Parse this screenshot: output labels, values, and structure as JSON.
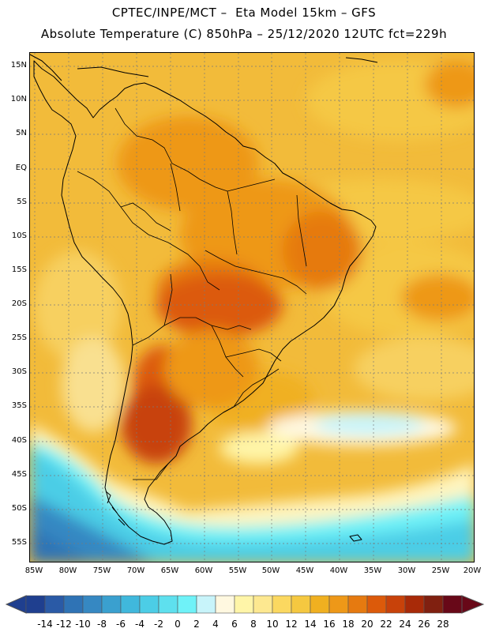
{
  "header": {
    "line1": "CPTEC/INPE/MCT –  Eta Model 15km – GFS",
    "line2": "Absolute Temperature (C) 850hPa – 25/12/2020 12UTC fct=229h"
  },
  "map": {
    "variable": "Absolute Temperature",
    "units": "C",
    "level": "850hPa",
    "lat_labels": [
      "15N",
      "10N",
      "5N",
      "EQ",
      "5S",
      "10S",
      "15S",
      "20S",
      "25S",
      "30S",
      "35S",
      "40S",
      "45S",
      "50S",
      "55S"
    ],
    "lat_values": [
      15,
      10,
      5,
      0,
      -5,
      -10,
      -15,
      -20,
      -25,
      -30,
      -35,
      -40,
      -45,
      -50,
      -55
    ],
    "lon_labels": [
      "85W",
      "80W",
      "75W",
      "70W",
      "65W",
      "60W",
      "55W",
      "50W",
      "45W",
      "40W",
      "35W",
      "30W",
      "25W",
      "20W"
    ],
    "lon_values": [
      -85,
      -80,
      -75,
      -70,
      -65,
      -60,
      -55,
      -50,
      -45,
      -40,
      -35,
      -30,
      -25,
      -20
    ],
    "extent": {
      "lon_min": -85.5,
      "lon_max": -20,
      "lat_min": -58,
      "lat_max": 16.5
    }
  },
  "colorbar": {
    "labels": [
      "-14",
      "-12",
      "-10",
      "-8",
      "-6",
      "-4",
      "-2",
      "0",
      "2",
      "4",
      "6",
      "8",
      "10",
      "12",
      "14",
      "16",
      "18",
      "20",
      "22",
      "24",
      "26",
      "28"
    ],
    "colors": [
      "#1f3f8f",
      "#2a5aa6",
      "#2f73b5",
      "#3688c2",
      "#3aa0cf",
      "#40b8dc",
      "#4ccde6",
      "#5ee0ee",
      "#6ff2f8",
      "#c8f4fa",
      "#fff8e0",
      "#fff5a8",
      "#fde890",
      "#fbd860",
      "#f5c840",
      "#f0b020",
      "#ee9818",
      "#e67a10",
      "#dc5a0a",
      "#c8420a",
      "#a82a08",
      "#802010",
      "#680818"
    ]
  }
}
